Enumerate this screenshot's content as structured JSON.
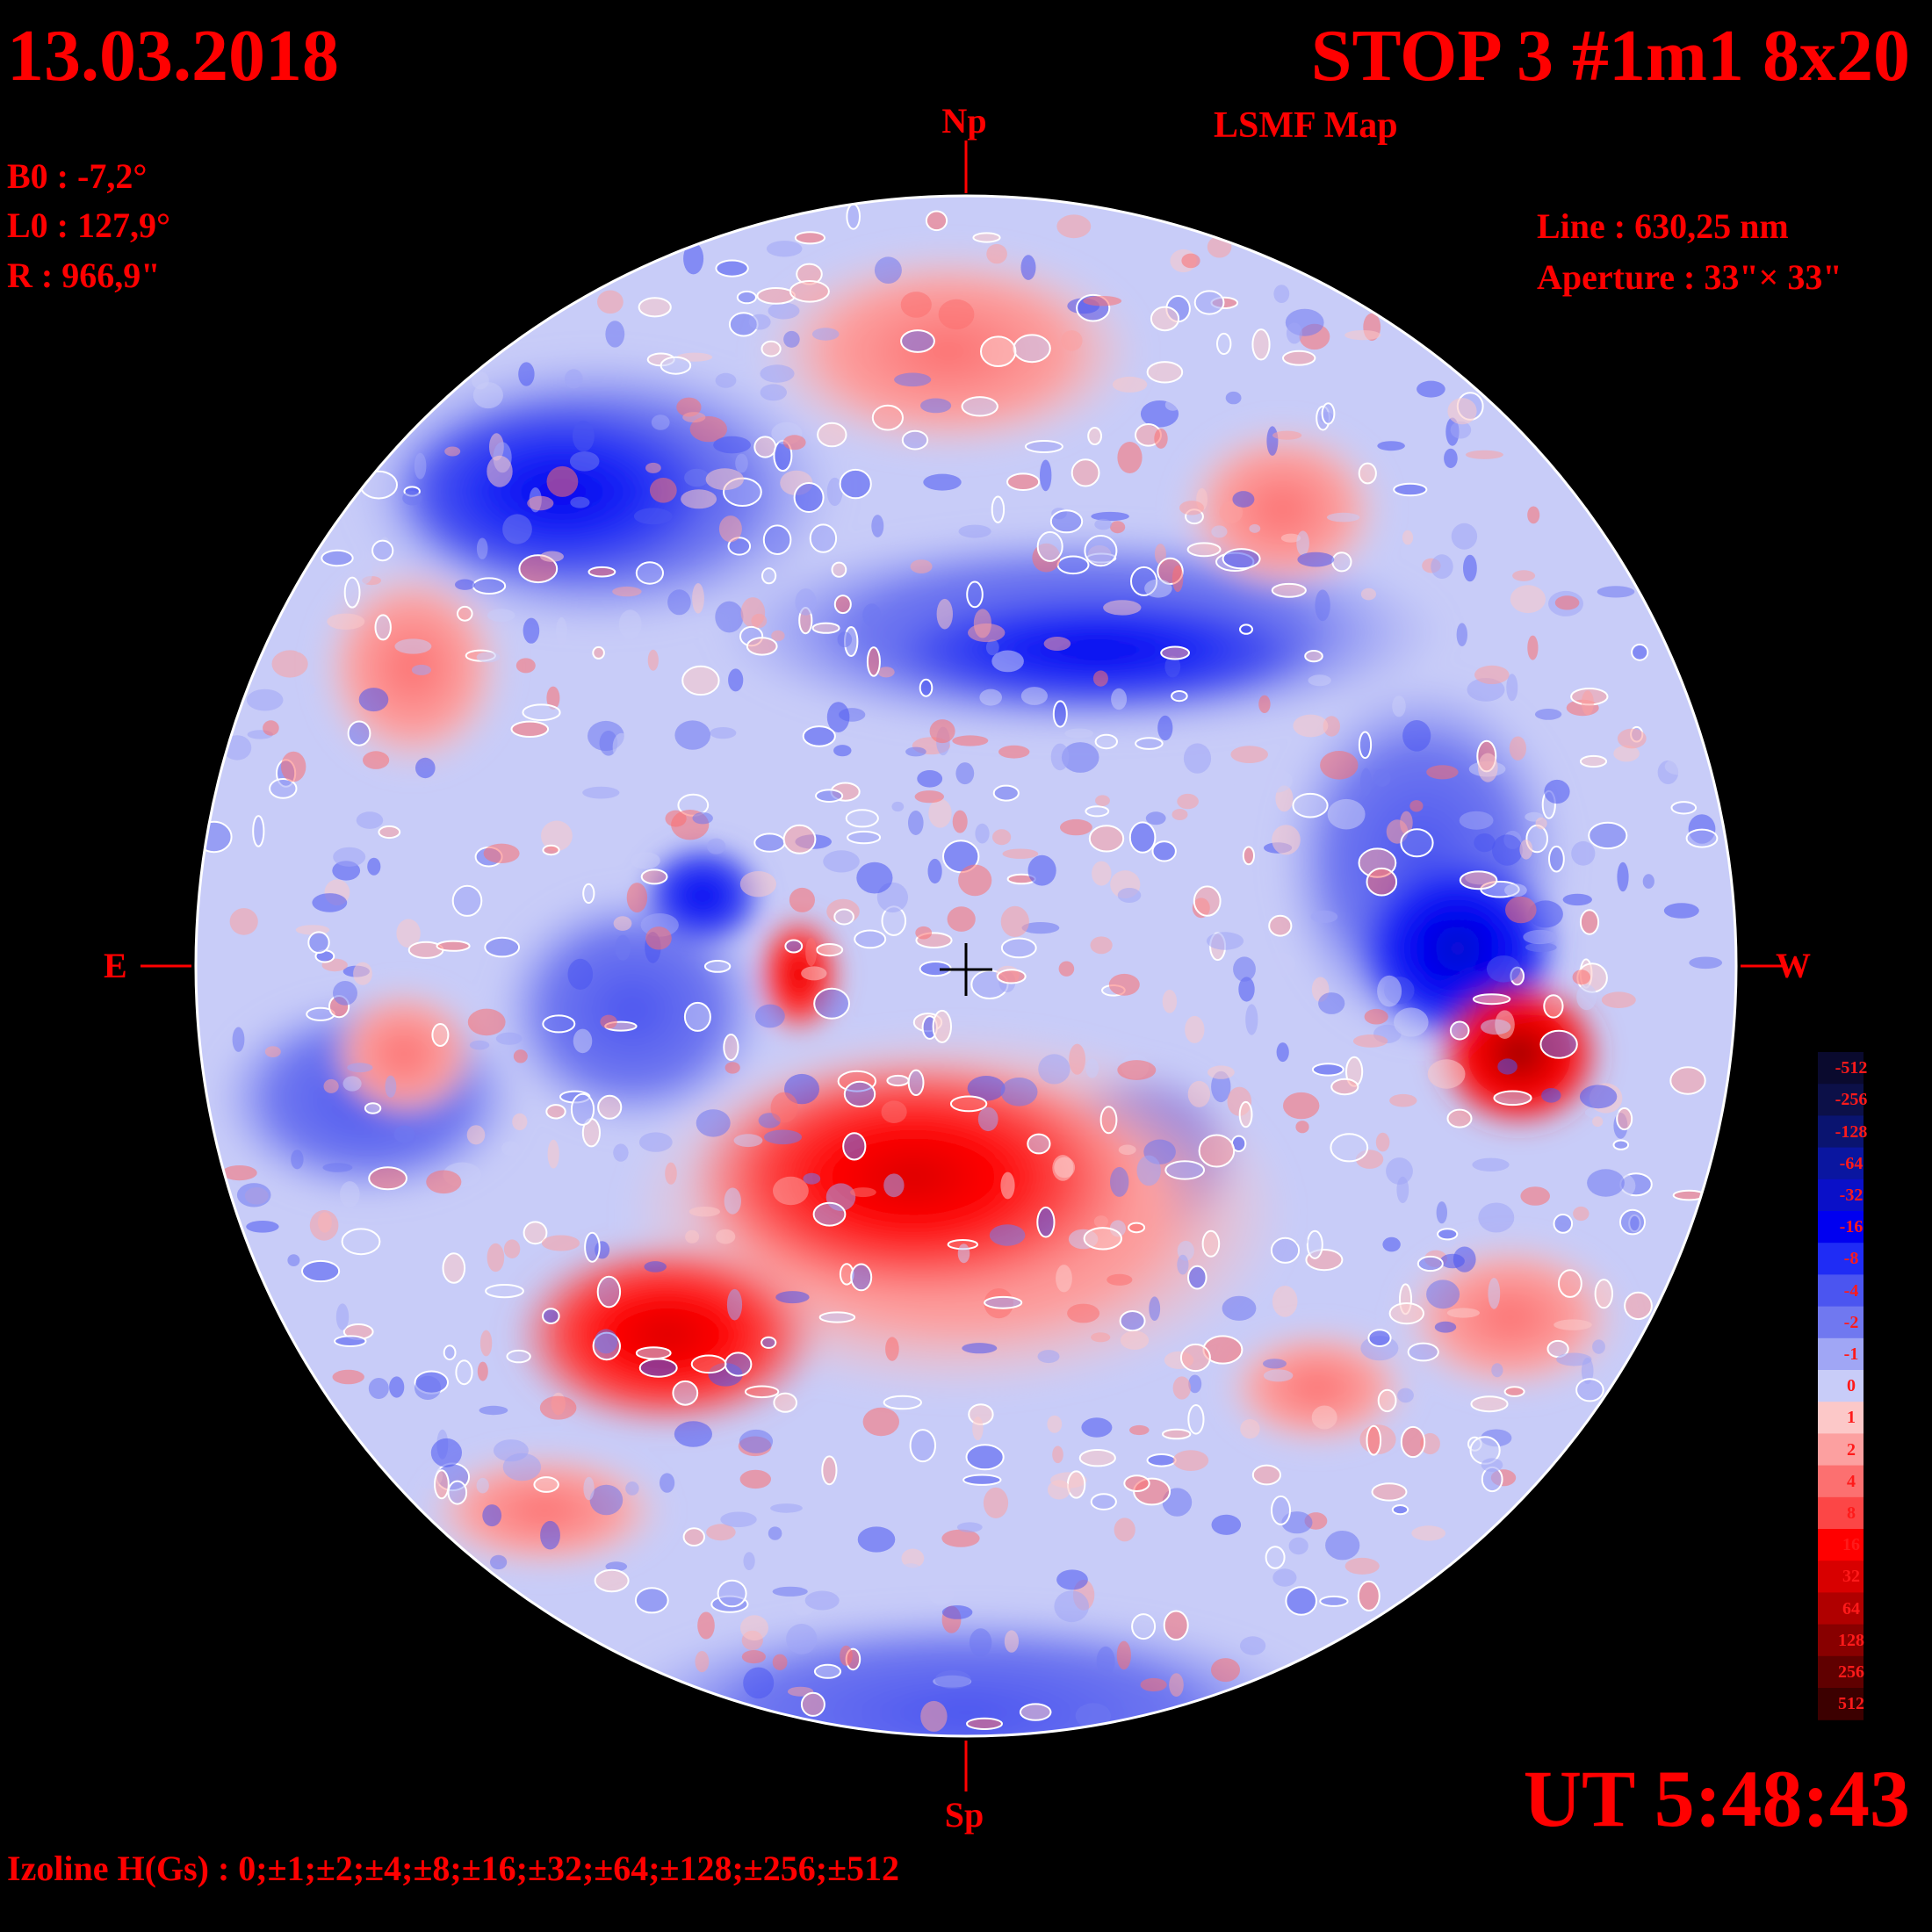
{
  "header": {
    "date": "13.03.2018",
    "title": "STOP 3 #1m1 8x20",
    "subtitle": "LSMF  Map"
  },
  "parameters": {
    "b0": "B0 : -7,2°",
    "l0": "L0 : 127,9°",
    "r": "R  : 966,9\"",
    "line": "Line :  630,25 nm",
    "aperture": "Aperture : 33\"× 33\""
  },
  "compass": {
    "north": "Np",
    "south": "Sp",
    "east": "E",
    "west": "W"
  },
  "footer": {
    "time": "UT 5:48:43",
    "izoline": "Izoline H(Gs) : 0;±1;±2;±4;±8;±16;±32;±64;±128;±256;±512"
  },
  "colorbar": {
    "levels": [
      {
        "label": "-512",
        "color": "#0a0a2e"
      },
      {
        "label": "-256",
        "color": "#0c1048"
      },
      {
        "label": "-128",
        "color": "#0a1470"
      },
      {
        "label": "-64",
        "color": "#0a16a0"
      },
      {
        "label": "-32",
        "color": "#0a10c8"
      },
      {
        "label": "-16",
        "color": "#0000f0"
      },
      {
        "label": "-8",
        "color": "#1f2cf5"
      },
      {
        "label": "-4",
        "color": "#4b55f0"
      },
      {
        "label": "-2",
        "color": "#7078f0"
      },
      {
        "label": "-1",
        "color": "#a0a6f5"
      },
      {
        "label": "0",
        "color": "#c8ccf8"
      },
      {
        "label": "1",
        "color": "#fcc8c8"
      },
      {
        "label": "2",
        "color": "#fca0a0"
      },
      {
        "label": "4",
        "color": "#fc7070"
      },
      {
        "label": "8",
        "color": "#fc4646"
      },
      {
        "label": "16",
        "color": "#ff0000"
      },
      {
        "label": "32",
        "color": "#d80000"
      },
      {
        "label": "64",
        "color": "#b00000"
      },
      {
        "label": "128",
        "color": "#880000"
      },
      {
        "label": "256",
        "color": "#600000"
      },
      {
        "label": "512",
        "color": "#3c0000"
      }
    ]
  }
}
